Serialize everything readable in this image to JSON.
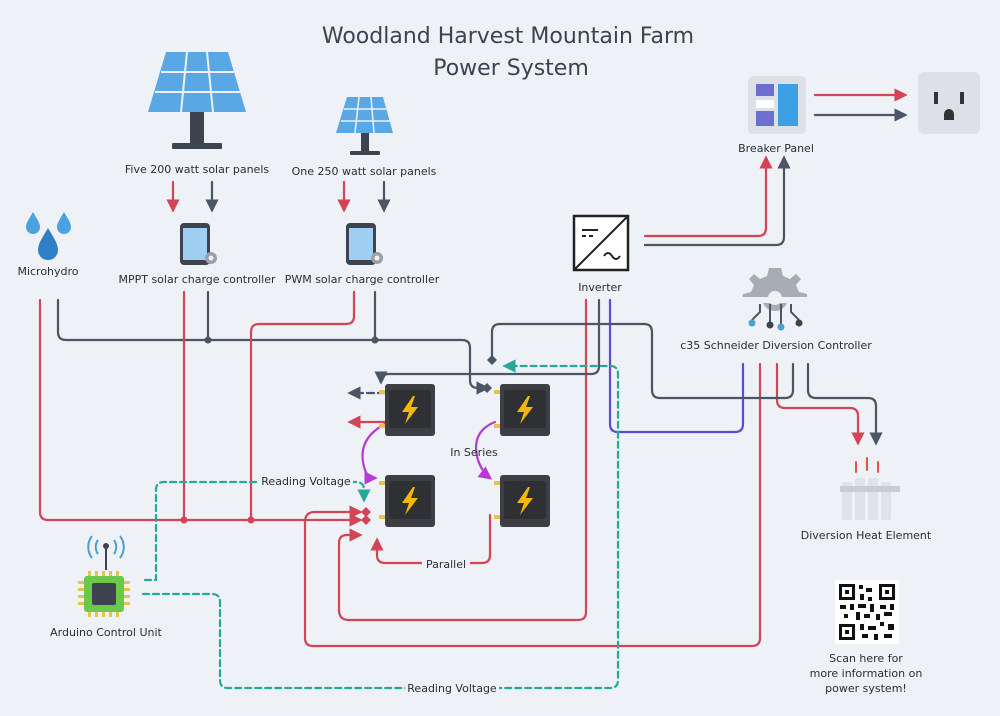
{
  "title_line1": "Woodland Harvest Mountain Farm",
  "title_line2": "Power System",
  "labels": {
    "panels_five": "Five 200 watt solar panels",
    "panels_one": "One 250 watt solar panels",
    "microhydro": "Microhydro",
    "mppt": "MPPT solar charge controller",
    "pwm": "PWM solar charge controller",
    "inverter": "Inverter",
    "breaker_panel": "Breaker Panel",
    "diversion_controller": "c35 Schneider Diversion Controller",
    "diversion_heat": "Diversion Heat Element",
    "arduino": "Arduino Control Unit",
    "reading_voltage_top": "Reading Voltage",
    "reading_voltage_bottom": "Reading Voltage",
    "in_series": "In Series",
    "parallel": "Parallel",
    "qr_line1": "Scan here for",
    "qr_line2": "more information on",
    "qr_line3": "power system!"
  },
  "colors": {
    "positive": "#d24556",
    "negative": "#4b5563",
    "inverter_link": "#5b4bd6",
    "voltage_sense": "#27a99a",
    "battery_link": "#b83ad6",
    "battery_body": "#3d3f44",
    "battery_bolt": "#f5b800",
    "panel_blue": "#5aa7e6"
  },
  "icons": [
    "solar-panel-icon",
    "phone-controller-icon",
    "water-drops-icon",
    "inverter-icon",
    "breaker-panel-icon",
    "outlet-icon",
    "gear-circuit-icon",
    "battery-icon",
    "heater-icon",
    "chip-icon",
    "qr-code-icon"
  ]
}
